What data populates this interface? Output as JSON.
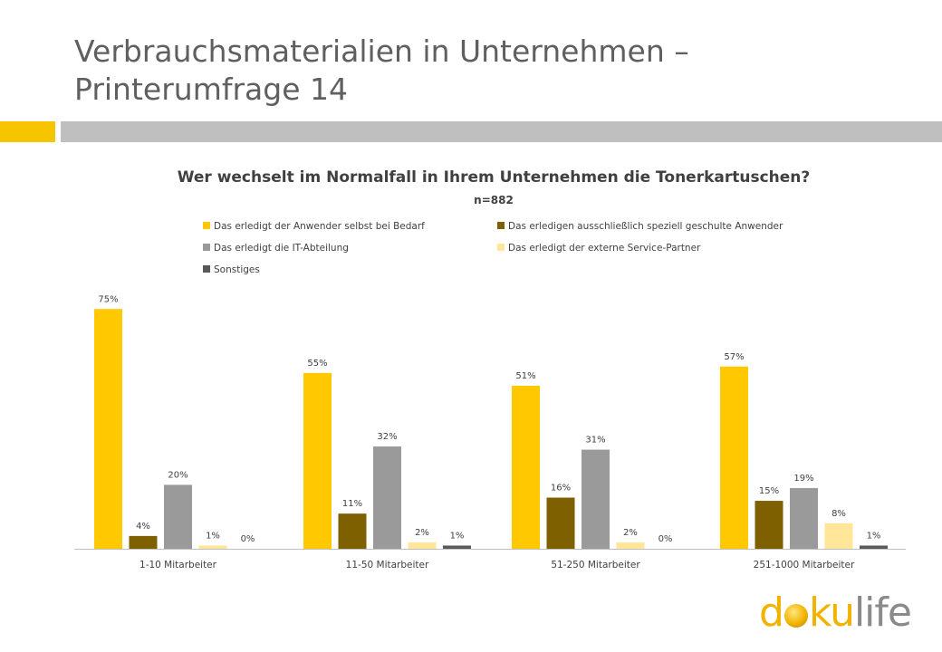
{
  "page": {
    "title": "Verbrauchsmaterialien in Unternehmen – Printerumfrage 14"
  },
  "logo": {
    "d": "d",
    "ku": "ku",
    "life": "life"
  },
  "colors": {
    "accent_yellow": "#f7c400",
    "accent_gray": "#bfbfbf"
  },
  "chart_data": {
    "type": "bar",
    "title": "Wer wechselt im Normalfall in Ihrem Unternehmen die Tonerkartuschen?",
    "subtitle": "n=882",
    "categories": [
      "1-10 Mitarbeiter",
      "11-50 Mitarbeiter",
      "51-250 Mitarbeiter",
      "251-1000 Mitarbeiter"
    ],
    "legend_position": "top",
    "grid": false,
    "ylim": [
      0,
      80
    ],
    "series": [
      {
        "name": "Das erledigt der Anwender selbst bei Bedarf",
        "color": "#ffc800",
        "values": [
          75,
          55,
          51,
          57
        ]
      },
      {
        "name": "Das erledigen ausschließlich speziell geschulte Anwender",
        "color": "#7f6000",
        "values": [
          4,
          11,
          16,
          15
        ]
      },
      {
        "name": "Das erledigt die IT-Abteilung",
        "color": "#9a9a9a",
        "values": [
          20,
          32,
          31,
          19
        ]
      },
      {
        "name": "Das erledigt der externe Service-Partner",
        "color": "#ffe699",
        "values": [
          1,
          2,
          2,
          8
        ]
      },
      {
        "name": "Sonstiges",
        "color": "#595959",
        "values": [
          0,
          1,
          0,
          1
        ]
      }
    ],
    "value_suffix": "%"
  }
}
